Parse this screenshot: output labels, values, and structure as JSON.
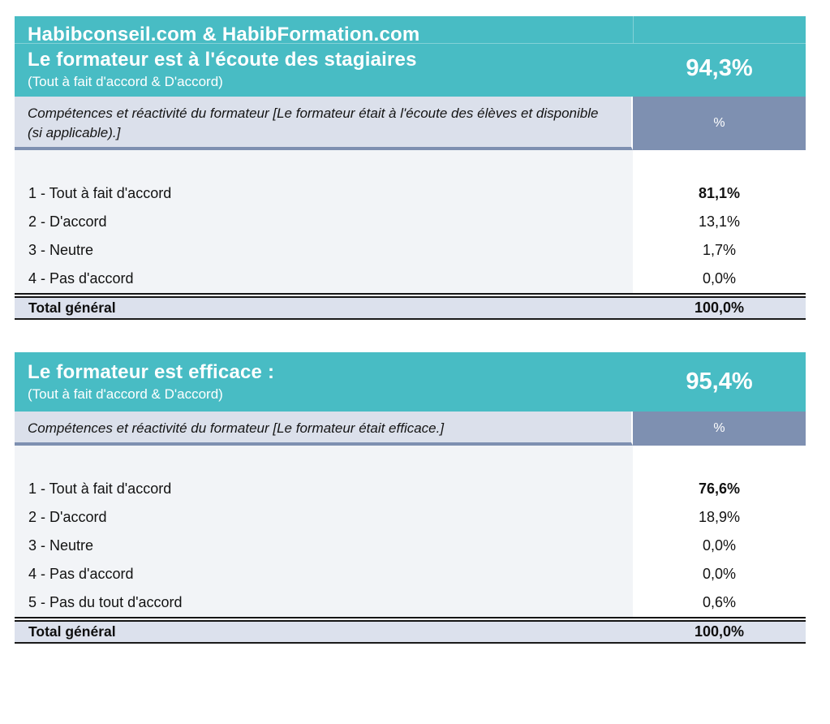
{
  "colors": {
    "header_teal": "#48BCC4",
    "accent_blue_gray": "#7E90B1",
    "question_bg": "#DBE0EB",
    "total_bg": "#DCE1ED",
    "data_bg": "#F2F4F7",
    "header_text": "#FFFFFF",
    "body_text": "#121212"
  },
  "tables": [
    {
      "header": {
        "line1": "Habibconseil.com & HabibFormation.com",
        "line2": "Le formateur est à l'écoute des stagiaires",
        "subtitle": "(Tout à fait d'accord & D'accord)",
        "score": "94,3%"
      },
      "question": "Compétences et réactivité du formateur [Le formateur était à l'écoute des élèves et disponible (si applicable).]",
      "percent_header": "%",
      "rows": [
        {
          "label": "1 - Tout à fait d'accord",
          "value": "81,1%",
          "bold": true
        },
        {
          "label": "2 - D'accord",
          "value": "13,1%",
          "bold": false
        },
        {
          "label": "3 - Neutre",
          "value": "1,7%",
          "bold": false
        },
        {
          "label": "4 - Pas d'accord",
          "value": "0,0%",
          "bold": false
        }
      ],
      "total": {
        "label": "Total général",
        "value": "100,0%"
      }
    },
    {
      "header": {
        "line1": "Le formateur est efficace :",
        "subtitle": "(Tout à fait d'accord & D'accord)",
        "score": "95,4%"
      },
      "question": "Compétences et réactivité du formateur [Le formateur était efficace.]",
      "percent_header": "%",
      "rows": [
        {
          "label": "1 - Tout à fait d'accord",
          "value": "76,6%",
          "bold": true
        },
        {
          "label": "2 - D'accord",
          "value": "18,9%",
          "bold": false
        },
        {
          "label": "3 - Neutre",
          "value": "0,0%",
          "bold": false
        },
        {
          "label": "4 - Pas d'accord",
          "value": "0,0%",
          "bold": false
        },
        {
          "label": "5 - Pas du tout d'accord",
          "value": "0,6%",
          "bold": false
        }
      ],
      "total": {
        "label": "Total général",
        "value": "100,0%"
      }
    }
  ]
}
